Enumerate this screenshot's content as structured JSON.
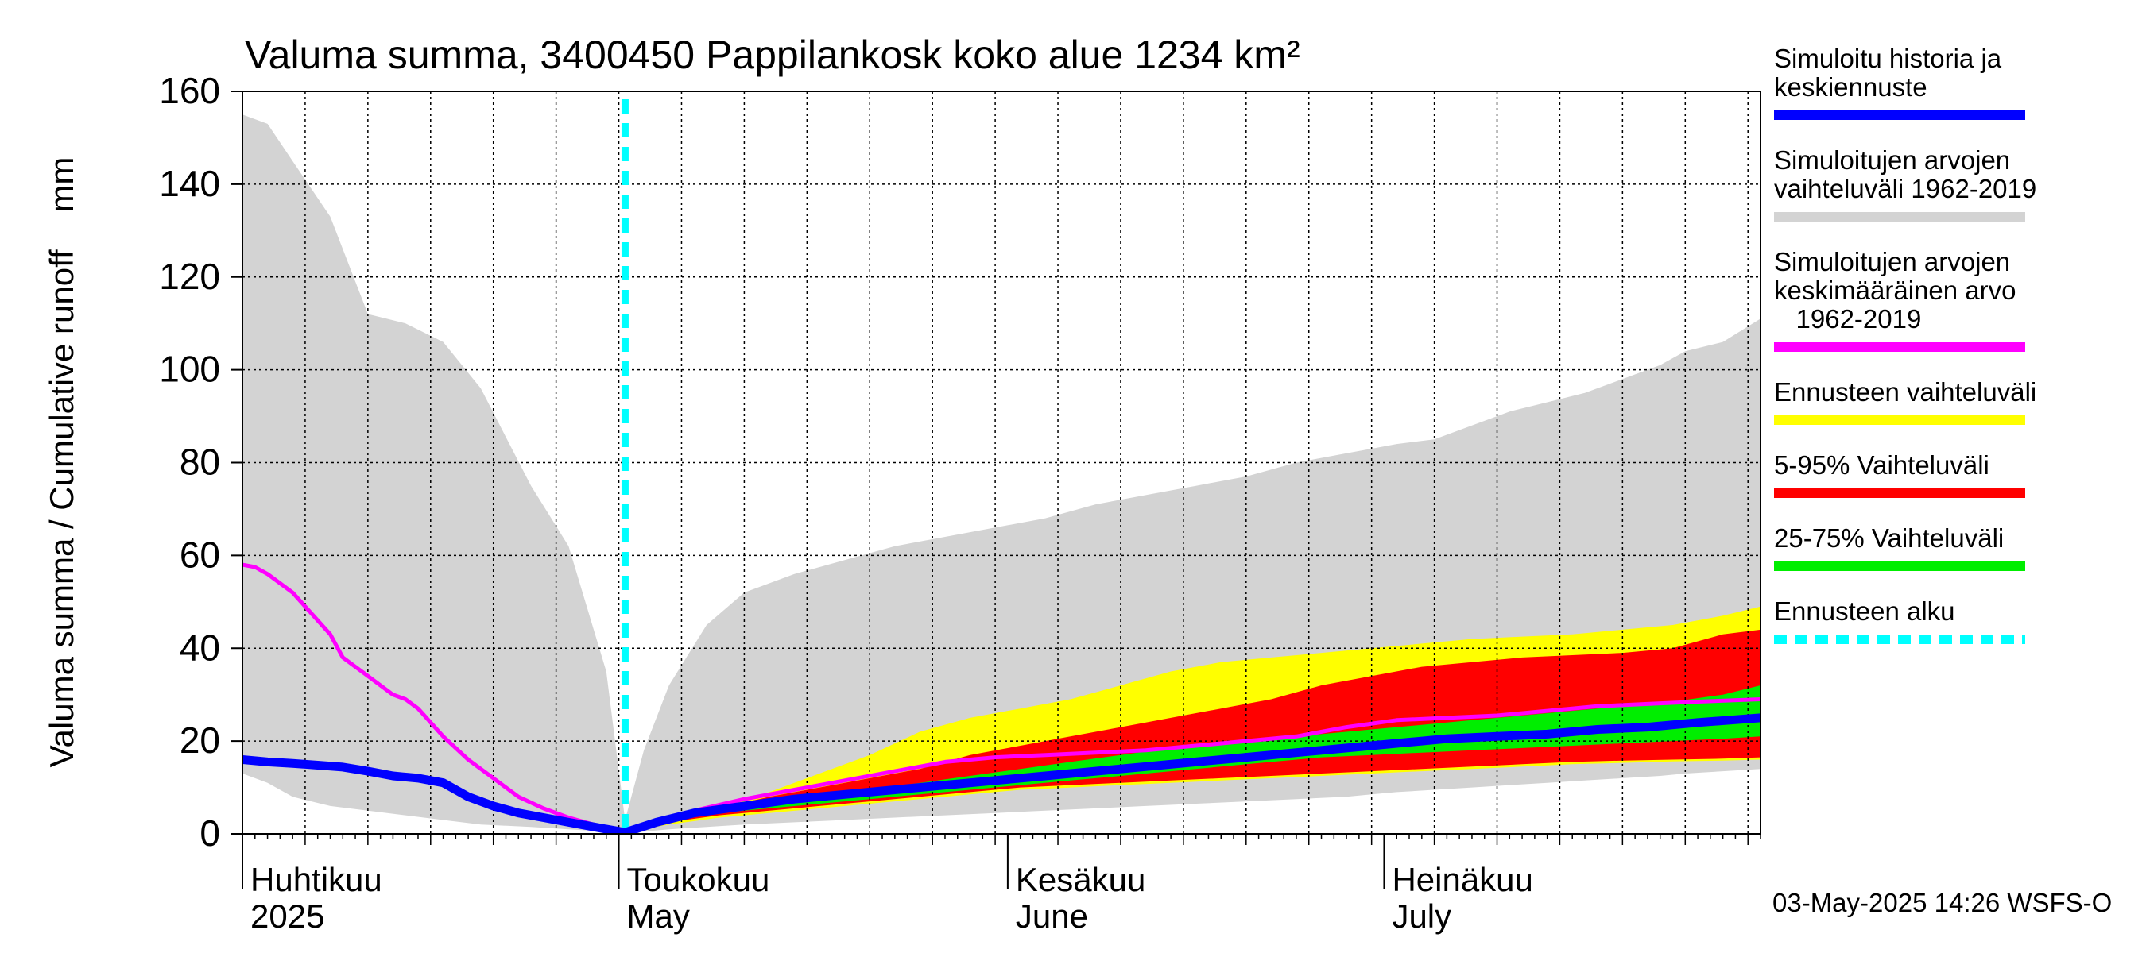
{
  "chart_data": {
    "type": "area",
    "title": "Valuma summa, 3400450 Pappilankosk koko alue 1234 km²",
    "ylabel": "Valuma summa / Cumulative runoff    mm",
    "ylim": [
      0,
      160
    ],
    "yticks": [
      0,
      20,
      40,
      60,
      80,
      100,
      120,
      140,
      160
    ],
    "x_unit": "day index from 1 April 2025 (0 = Apr 1)",
    "xlim": [
      0,
      121
    ],
    "grid": true,
    "month_labels": [
      {
        "fi": "Huhtikuu",
        "en": "2025",
        "day": 0
      },
      {
        "fi": "Toukokuu",
        "en": "May",
        "day": 30
      },
      {
        "fi": "Kesäkuu",
        "en": "June",
        "day": 61
      },
      {
        "fi": "Heinäkuu",
        "en": "July",
        "day": 91
      }
    ],
    "forecast_start_day": 30.5,
    "series": [
      {
        "name": "Simuloitujen arvojen vaihteluväli 1962-2019",
        "role": "range",
        "color": "#d3d3d3",
        "x": [
          0,
          2,
          4,
          7,
          10,
          13,
          16,
          19,
          23,
          26,
          29,
          30.5,
          32,
          34,
          37,
          40,
          44,
          48,
          52,
          56,
          60,
          64,
          68,
          72,
          76,
          80,
          84,
          88,
          90,
          92,
          95,
          98,
          101,
          104,
          107,
          110,
          113,
          115,
          118,
          121
        ],
        "high": [
          155,
          153,
          145,
          133,
          112,
          110,
          106,
          96,
          75,
          62,
          35,
          3,
          18,
          32,
          45,
          52,
          56,
          59,
          62,
          64,
          66,
          68,
          71,
          73,
          75,
          77,
          80,
          82,
          83,
          84,
          85,
          88,
          91,
          93,
          95,
          98,
          101,
          104,
          106,
          111
        ],
        "low": [
          13,
          11,
          8,
          6,
          5,
          4,
          3,
          2,
          1.5,
          1,
          0.5,
          0,
          0.5,
          1,
          1.5,
          2,
          2.5,
          3,
          3.5,
          4,
          4.5,
          5,
          5.5,
          6,
          6.5,
          7,
          7.5,
          8,
          8.5,
          9,
          9.5,
          10,
          10.5,
          11,
          11.5,
          12,
          12.5,
          13,
          13.5,
          14
        ]
      },
      {
        "name": "Ennusteen vaihteluväli",
        "role": "range",
        "color": "#ffff00",
        "x": [
          30.5,
          34,
          38,
          42,
          46,
          50,
          54,
          58,
          62,
          66,
          70,
          74,
          78,
          82,
          86,
          90,
          94,
          98,
          102,
          106,
          110,
          114,
          118,
          121
        ],
        "high": [
          0.3,
          3,
          6,
          9,
          13,
          17,
          22,
          25,
          27,
          29,
          32,
          35,
          37,
          38,
          39,
          40,
          41,
          42,
          42.5,
          43,
          44,
          45,
          47,
          49
        ],
        "low": [
          0.3,
          2,
          3.5,
          4.5,
          5.5,
          6.5,
          7.5,
          8.5,
          9.5,
          10,
          10.5,
          11,
          11.5,
          12,
          12.5,
          13,
          13.5,
          14,
          14.5,
          15,
          15.3,
          15.6,
          15.8,
          16
        ]
      },
      {
        "name": "5-95% Vaihteluväli",
        "role": "range",
        "color": "#ff0000",
        "x": [
          30.5,
          34,
          38,
          42,
          46,
          50,
          54,
          58,
          62,
          66,
          70,
          74,
          78,
          82,
          86,
          90,
          94,
          98,
          102,
          106,
          110,
          114,
          118,
          121
        ],
        "high": [
          0.3,
          3,
          5.5,
          8,
          10,
          12,
          14,
          17,
          19,
          21,
          23,
          25,
          27,
          29,
          32,
          34,
          36,
          37,
          38,
          38.5,
          39,
          40,
          43,
          44
        ],
        "low": [
          0.3,
          2.5,
          4,
          5,
          6,
          7,
          8,
          9,
          10,
          10.5,
          11,
          11.5,
          12,
          12.5,
          13,
          13.5,
          14,
          14.5,
          15,
          15.5,
          15.8,
          16,
          16.2,
          16.5
        ]
      },
      {
        "name": "25-75% Vaihteluväli",
        "role": "range",
        "color": "#00ee00",
        "x": [
          30.5,
          34,
          38,
          42,
          46,
          50,
          54,
          58,
          62,
          66,
          70,
          74,
          78,
          82,
          86,
          90,
          94,
          98,
          102,
          106,
          110,
          114,
          118,
          121
        ],
        "high": [
          0.3,
          3,
          5,
          6.5,
          8,
          9.5,
          11,
          12.5,
          14,
          15.5,
          17,
          18.5,
          19.5,
          20.5,
          21.5,
          22.5,
          23.5,
          24.5,
          25.5,
          26.5,
          27.5,
          28.5,
          30,
          32
        ],
        "low": [
          0.3,
          2.7,
          4.5,
          5.5,
          6.5,
          7.5,
          8.5,
          9.5,
          10.5,
          11.5,
          12.5,
          13.5,
          14.5,
          15.5,
          16.5,
          17,
          17.5,
          18,
          18.5,
          19,
          19.5,
          20,
          20.5,
          21
        ]
      },
      {
        "name": "Simuloitujen arvojen keskimääräinen arvo 1962-2019",
        "role": "line",
        "color": "#ff00ff",
        "x": [
          0,
          1,
          2,
          4,
          6,
          7,
          8,
          10,
          12,
          13,
          14,
          16,
          18,
          20,
          22,
          24,
          26,
          28,
          30.5,
          33,
          36,
          40,
          44,
          48,
          52,
          56,
          60,
          64,
          68,
          72,
          76,
          80,
          84,
          88,
          92,
          96,
          100,
          104,
          108,
          112,
          116,
          121
        ],
        "values": [
          58,
          57.5,
          56,
          52,
          46,
          43,
          38,
          34,
          30,
          29,
          27,
          21,
          16,
          12,
          8,
          5.5,
          3.5,
          2,
          0.3,
          2.5,
          5,
          7.5,
          9.5,
          11.5,
          13.5,
          15.5,
          16.5,
          17,
          17.5,
          18,
          19,
          20,
          21,
          23,
          24.5,
          25,
          25.5,
          26.5,
          27.5,
          28,
          28.5,
          29
        ]
      },
      {
        "name": "Simuloitu historia ja keskiennuste",
        "role": "line",
        "color": "#0000ff",
        "x": [
          0,
          2,
          4,
          6,
          8,
          10,
          12,
          14,
          16,
          18,
          20,
          22,
          24,
          26,
          28,
          30.5,
          33,
          36,
          40,
          44,
          48,
          52,
          56,
          60,
          64,
          68,
          72,
          76,
          80,
          84,
          88,
          92,
          96,
          100,
          104,
          108,
          112,
          116,
          121
        ],
        "values": [
          16,
          15.5,
          15.2,
          14.8,
          14.4,
          13.5,
          12.5,
          12,
          11,
          8,
          6,
          4.5,
          3.5,
          2.5,
          1.5,
          0.3,
          2.5,
          4.5,
          6,
          7.5,
          8.5,
          9.5,
          10.5,
          11.5,
          12.5,
          13.5,
          14.5,
          15.5,
          16.5,
          17.5,
          18.5,
          19.5,
          20.5,
          21,
          21.5,
          22.5,
          23,
          24,
          25
        ]
      }
    ]
  },
  "legend": [
    {
      "lines": [
        "Simuloitu historia ja",
        "keskiennuste"
      ],
      "color": "#0000ff",
      "style": "solid"
    },
    {
      "lines": [
        "Simuloitujen arvojen",
        "vaihteluväli 1962-2019"
      ],
      "color": "#d3d3d3",
      "style": "solid"
    },
    {
      "lines": [
        "Simuloitujen arvojen",
        "keskimääräinen arvo",
        "   1962-2019"
      ],
      "color": "#ff00ff",
      "style": "solid"
    },
    {
      "lines": [
        "Ennusteen vaihteluväli"
      ],
      "color": "#ffff00",
      "style": "solid"
    },
    {
      "lines": [
        "5-95% Vaihteluväli"
      ],
      "color": "#ff0000",
      "style": "solid"
    },
    {
      "lines": [
        "25-75% Vaihteluväli"
      ],
      "color": "#00ee00",
      "style": "solid"
    },
    {
      "lines": [
        "Ennusteen alku"
      ],
      "color": "#00ffff",
      "style": "dashed"
    }
  ],
  "footer": "03-May-2025 14:26 WSFS-O"
}
